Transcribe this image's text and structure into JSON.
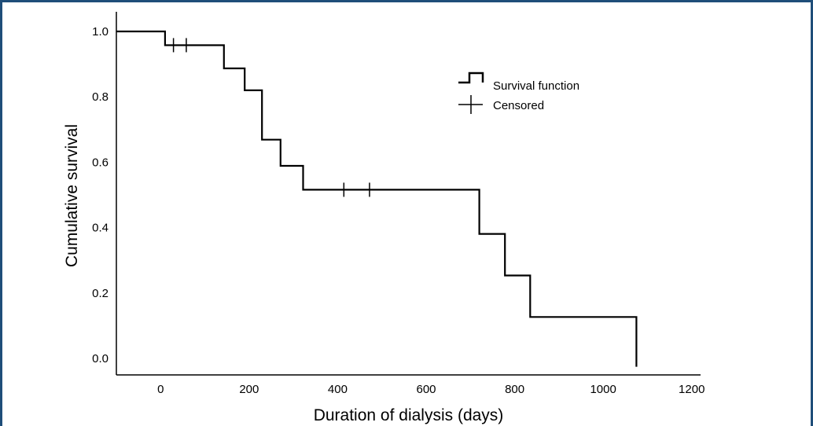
{
  "chart_data": {
    "type": "line",
    "subtype": "kaplan-meier step survival curve",
    "xlabel": "Duration of dialysis (days)",
    "ylabel": "Cumulative survival",
    "xlim": [
      -100,
      1220
    ],
    "ylim": [
      -0.05,
      1.06
    ],
    "xticks": [
      0,
      200,
      400,
      600,
      800,
      1000,
      1200
    ],
    "yticks": [
      0.0,
      0.2,
      0.4,
      0.6,
      0.8,
      1.0
    ],
    "ytick_labels": [
      "0.0",
      "0.2",
      "0.4",
      "0.6",
      "0.8",
      "1.0"
    ],
    "grid": false,
    "legend_position": "top-right",
    "legend": [
      {
        "name": "Survival function",
        "marker": "step"
      },
      {
        "name": "Censored",
        "marker": "plus"
      }
    ],
    "series": [
      {
        "name": "Survival function",
        "step_points": [
          [
            -100,
            1.0
          ],
          [
            10,
            1.0
          ],
          [
            10,
            0.958
          ],
          [
            143,
            0.958
          ],
          [
            143,
            0.887
          ],
          [
            190,
            0.887
          ],
          [
            190,
            0.82
          ],
          [
            229,
            0.82
          ],
          [
            229,
            0.669
          ],
          [
            271,
            0.669
          ],
          [
            271,
            0.589
          ],
          [
            322,
            0.589
          ],
          [
            322,
            0.516
          ],
          [
            720,
            0.516
          ],
          [
            720,
            0.381
          ],
          [
            778,
            0.381
          ],
          [
            778,
            0.254
          ],
          [
            835,
            0.254
          ],
          [
            835,
            0.127
          ],
          [
            1075,
            0.127
          ],
          [
            1075,
            -0.025
          ]
        ]
      },
      {
        "name": "Censored",
        "points": [
          [
            29,
            0.958
          ],
          [
            58,
            0.958
          ],
          [
            414,
            0.516
          ],
          [
            472,
            0.516
          ]
        ]
      }
    ]
  }
}
